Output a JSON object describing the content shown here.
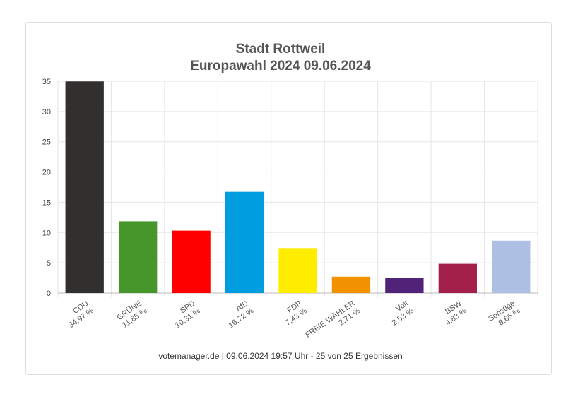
{
  "chart_data": {
    "type": "bar",
    "title": "Stadt Rottweil",
    "subtitle": "Europawahl 2024 09.06.2024",
    "ylim": [
      0,
      35
    ],
    "yticks": [
      0,
      5,
      10,
      15,
      20,
      25,
      30,
      35
    ],
    "grid": true,
    "categories": [
      "CDU",
      "GRÜNE",
      "SPD",
      "AfD",
      "FDP",
      "FREIE WÄHLER",
      "Volt",
      "BSW",
      "Sonstige"
    ],
    "value_labels": [
      "34,97 %",
      "11,85 %",
      "10,31 %",
      "16,72 %",
      "7,43 %",
      "2,71 %",
      "2,53 %",
      "4,83 %",
      "8,66 %"
    ],
    "values": [
      34.97,
      11.85,
      10.31,
      16.72,
      7.43,
      2.71,
      2.53,
      4.83,
      8.66
    ],
    "colors": [
      "#32302f",
      "#46962b",
      "#ff0000",
      "#009ee0",
      "#ffed00",
      "#f39200",
      "#502379",
      "#a3204b",
      "#adbfe3"
    ]
  },
  "footer": "votemanager.de | 09.06.2024 19:57 Uhr - 25 von 25 Ergebnissen"
}
